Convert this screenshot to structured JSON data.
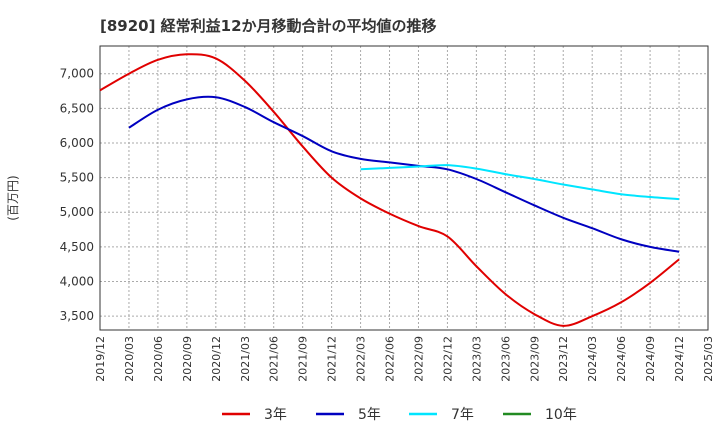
{
  "chart_data": {
    "type": "line",
    "title": "[8920]  経常利益12か月移動合計の平均値の推移",
    "ylabel": "(百万円)",
    "ylim": [
      3300,
      7400
    ],
    "yticks": [
      "3,500",
      "4,000",
      "4,500",
      "5,000",
      "5,500",
      "6,000",
      "6,500",
      "7,000"
    ],
    "ytick_values": [
      3500,
      4000,
      4500,
      5000,
      5500,
      6000,
      6500,
      7000
    ],
    "xticks": [
      "2019/12",
      "2020/03",
      "2020/06",
      "2020/09",
      "2020/12",
      "2021/03",
      "2021/06",
      "2021/09",
      "2021/12",
      "2022/03",
      "2022/06",
      "2022/09",
      "2022/12",
      "2023/03",
      "2023/06",
      "2023/09",
      "2023/12",
      "2024/03",
      "2024/06",
      "2024/09",
      "2024/12",
      "2025/03"
    ],
    "grid": true,
    "legend_position": "bottom",
    "series": [
      {
        "name": "3年",
        "color": "#e00000",
        "x": [
          "2019/12",
          "2020/03",
          "2020/06",
          "2020/09",
          "2020/12",
          "2021/03",
          "2021/06",
          "2021/09",
          "2021/12",
          "2022/03",
          "2022/06",
          "2022/09",
          "2022/12",
          "2023/03",
          "2023/06",
          "2023/09",
          "2023/12",
          "2024/03",
          "2024/06",
          "2024/09",
          "2024/12"
        ],
        "values": [
          6760,
          7000,
          7200,
          7280,
          7220,
          6900,
          6450,
          5950,
          5500,
          5200,
          4980,
          4800,
          4650,
          4220,
          3820,
          3530,
          3360,
          3500,
          3700,
          3980,
          4320
        ]
      },
      {
        "name": "5年",
        "color": "#0000c0",
        "x": [
          "2020/03",
          "2020/06",
          "2020/09",
          "2020/12",
          "2021/03",
          "2021/06",
          "2021/09",
          "2021/12",
          "2022/03",
          "2022/06",
          "2022/09",
          "2022/12",
          "2023/03",
          "2023/06",
          "2023/09",
          "2023/12",
          "2024/03",
          "2024/06",
          "2024/09",
          "2024/12"
        ],
        "values": [
          6220,
          6480,
          6630,
          6660,
          6520,
          6300,
          6100,
          5880,
          5770,
          5720,
          5670,
          5620,
          5480,
          5290,
          5100,
          4920,
          4770,
          4610,
          4500,
          4430
        ]
      },
      {
        "name": "7年",
        "color": "#00e5ff",
        "x": [
          "2022/03",
          "2022/06",
          "2022/09",
          "2022/12",
          "2023/03",
          "2023/06",
          "2023/09",
          "2023/12",
          "2024/03",
          "2024/06",
          "2024/09",
          "2024/12"
        ],
        "values": [
          5620,
          5640,
          5660,
          5680,
          5630,
          5550,
          5480,
          5400,
          5330,
          5260,
          5220,
          5190
        ]
      },
      {
        "name": "10年",
        "color": "#228b22",
        "x": [],
        "values": []
      }
    ]
  }
}
